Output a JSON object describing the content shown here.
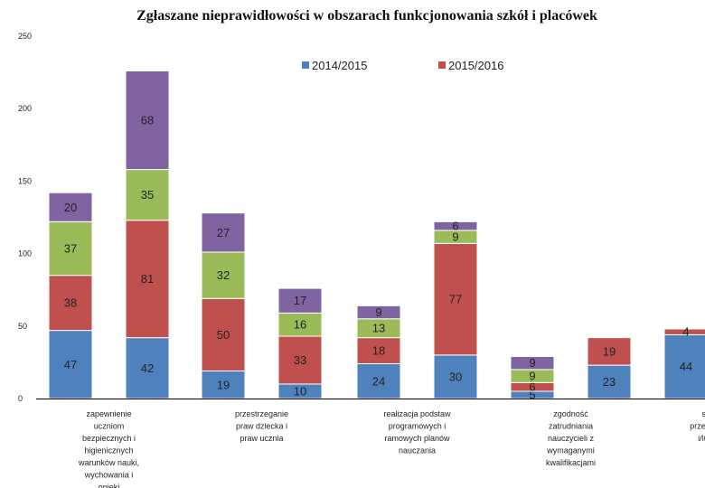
{
  "chart_data": {
    "type": "bar",
    "stacked": true,
    "title": "Zgłaszane nieprawidłowości w obszarach funkcjonowania szkół i placówek",
    "xlabel": "",
    "ylabel": "",
    "ylim": [
      0,
      250
    ],
    "yticks": [
      0,
      50,
      100,
      150,
      200,
      250
    ],
    "grid": false,
    "legend": {
      "position": "top",
      "entries": [
        "2014/2015",
        "2015/2016"
      ]
    },
    "layer_colors": [
      "#4f81bd",
      "#c0504d",
      "#9bbb59",
      "#8064a2"
    ],
    "categories": [
      "zapewnienie uczniom bezpiecznych i higienicznych warunków nauki, wychowania i opieki",
      "przestrzeganie praw dziecka i praw ucznia",
      "realizacja podstaw programowych i ramowych planów nauczania",
      "zgodność zatrudniania nauczycieli z wymaganymi kwalifikacjami",
      "stosowanie przemocy słownej i/lub fizycznej"
    ],
    "category_label_lines": [
      [
        "zapewnienie",
        "uczniom",
        "bezpiecznych i",
        "higienicznych",
        "warunków nauki,",
        "wychowania i",
        "opieki"
      ],
      [
        "przestrzeganie",
        "praw dziecka i",
        "praw ucznia"
      ],
      [
        "realizacja podstaw",
        "programowych i",
        "ramowych planów",
        "nauczania"
      ],
      [
        "zgodność",
        "zatrudniania",
        "nauczycieli z",
        "wymaganymi",
        "kwalifikacjami"
      ],
      [
        "stosowanie",
        "przemocy słownej",
        "i/lub fizycznej"
      ]
    ],
    "bars": [
      {
        "category": 0,
        "series": "2014/2015",
        "segments": [
          47,
          38,
          37,
          20
        ]
      },
      {
        "category": 0,
        "series": "2015/2016",
        "segments": [
          42,
          81,
          35,
          68
        ]
      },
      {
        "category": 1,
        "series": "2014/2015",
        "segments": [
          19,
          50,
          32,
          27
        ]
      },
      {
        "category": 1,
        "series": "2015/2016",
        "segments": [
          10,
          33,
          16,
          17
        ]
      },
      {
        "category": 2,
        "series": "2014/2015",
        "segments": [
          24,
          18,
          13,
          9
        ]
      },
      {
        "category": 2,
        "series": "2015/2016",
        "segments": [
          30,
          77,
          9,
          6
        ]
      },
      {
        "category": 3,
        "series": "2014/2015",
        "segments": [
          5,
          6,
          9,
          9
        ]
      },
      {
        "category": 3,
        "series": "2015/2016",
        "segments": [
          23,
          19
        ]
      },
      {
        "category": 4,
        "series": "2014/2015",
        "segments": [
          44,
          4
        ]
      }
    ]
  }
}
